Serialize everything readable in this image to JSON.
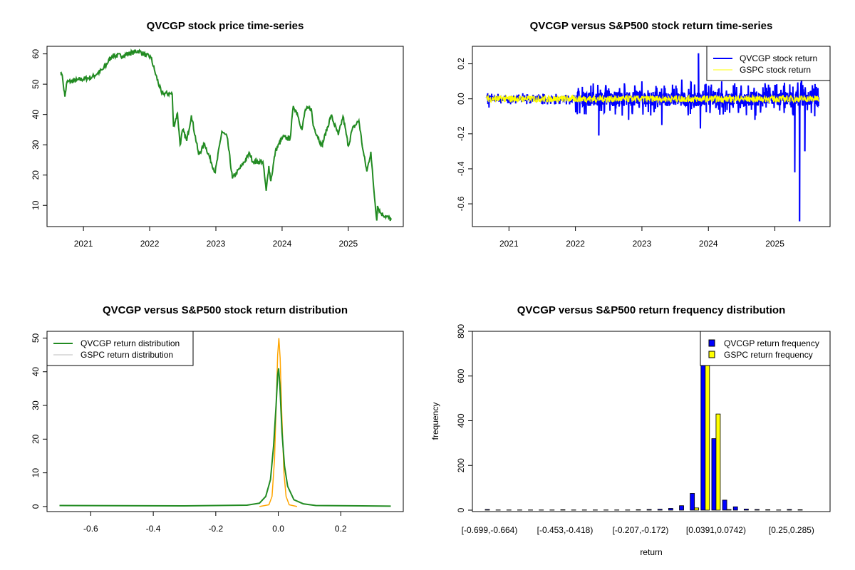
{
  "colors": {
    "price": "#228B22",
    "qvcgp_return": "#0000FF",
    "gspc_return": "#FFFF00",
    "gspc_density": "#FFA500",
    "gspc_legend": "#BEBEBE",
    "qvcgp_density": "#228B22"
  },
  "chart_data": [
    {
      "type": "line",
      "title": "QVCGP stock price time-series",
      "xlabel": "",
      "ylabel": "",
      "xlim": [
        2020.45,
        2025.83
      ],
      "ylim": [
        3,
        62.5
      ],
      "x_ticks": [
        "2021",
        "2022",
        "2023",
        "2024",
        "2025"
      ],
      "y_ticks": [
        "10",
        "20",
        "30",
        "40",
        "50",
        "60"
      ],
      "series": [
        {
          "name": "QVCGP price",
          "points": [
            [
              2020.66,
              54
            ],
            [
              2020.67,
              53.5
            ],
            [
              2020.69,
              51
            ],
            [
              2020.72,
              45.9
            ],
            [
              2020.75,
              50.7
            ],
            [
              2020.9,
              51.3
            ],
            [
              2021.13,
              52.3
            ],
            [
              2021.3,
              55
            ],
            [
              2021.43,
              59.3
            ],
            [
              2021.6,
              59.5
            ],
            [
              2021.83,
              61
            ],
            [
              2021.95,
              59.5
            ],
            [
              2022.02,
              58.8
            ],
            [
              2022.08,
              54
            ],
            [
              2022.18,
              47
            ],
            [
              2022.34,
              46.8
            ],
            [
              2022.36,
              36
            ],
            [
              2022.42,
              40.4
            ],
            [
              2022.46,
              30
            ],
            [
              2022.5,
              35
            ],
            [
              2022.56,
              31.3
            ],
            [
              2022.63,
              39.7
            ],
            [
              2022.74,
              26.7
            ],
            [
              2022.83,
              30.3
            ],
            [
              2022.99,
              20.8
            ],
            [
              2023.09,
              34.4
            ],
            [
              2023.17,
              32.5
            ],
            [
              2023.25,
              18.9
            ],
            [
              2023.39,
              23
            ],
            [
              2023.51,
              27.2
            ],
            [
              2023.56,
              24.4
            ],
            [
              2023.71,
              24.4
            ],
            [
              2023.76,
              14.8
            ],
            [
              2023.8,
              23
            ],
            [
              2023.83,
              18
            ],
            [
              2023.9,
              28
            ],
            [
              2024.01,
              32.5
            ],
            [
              2024.12,
              32
            ],
            [
              2024.17,
              42.8
            ],
            [
              2024.23,
              40.4
            ],
            [
              2024.3,
              34.9
            ],
            [
              2024.35,
              41.6
            ],
            [
              2024.44,
              42
            ],
            [
              2024.47,
              36.3
            ],
            [
              2024.6,
              29.6
            ],
            [
              2024.74,
              39.7
            ],
            [
              2024.85,
              33.2
            ],
            [
              2024.92,
              39.4
            ],
            [
              2025.0,
              29.6
            ],
            [
              2025.06,
              35.1
            ],
            [
              2025.16,
              38
            ],
            [
              2025.22,
              28.4
            ],
            [
              2025.28,
              21.2
            ],
            [
              2025.34,
              27.7
            ],
            [
              2025.38,
              16.5
            ],
            [
              2025.43,
              5
            ],
            [
              2025.44,
              9.8
            ],
            [
              2025.49,
              7.4
            ],
            [
              2025.65,
              5.3
            ]
          ]
        }
      ]
    },
    {
      "type": "line",
      "title": "QVCGP versus S&P500 stock return time-series",
      "xlim": [
        2020.45,
        2025.83
      ],
      "ylim": [
        -0.73,
        0.3
      ],
      "x_ticks": [
        "2021",
        "2022",
        "2023",
        "2024",
        "2025"
      ],
      "y_ticks": [
        "-0.6",
        "-0.4",
        "-0.2",
        "0.0",
        "0.2"
      ],
      "legend": {
        "placement": "top-right",
        "entries": [
          "QVCGP stock return",
          "GSPC stock return"
        ]
      },
      "series": [
        {
          "name": "QVCGP stock return",
          "spikes": [
            [
              2020.7,
              -0.05
            ],
            [
              2022.35,
              -0.21
            ],
            [
              2022.5,
              0.06
            ],
            [
              2022.8,
              -0.12
            ],
            [
              2023.0,
              0.1
            ],
            [
              2023.3,
              -0.15
            ],
            [
              2023.6,
              0.11
            ],
            [
              2023.85,
              0.26
            ],
            [
              2023.88,
              -0.17
            ],
            [
              2024.2,
              0.1
            ],
            [
              2024.7,
              -0.12
            ],
            [
              2025.0,
              0.08
            ],
            [
              2025.3,
              -0.42
            ],
            [
              2025.37,
              -0.7
            ],
            [
              2025.4,
              0.18
            ],
            [
              2025.45,
              -0.3
            ],
            [
              2025.6,
              -0.1
            ]
          ],
          "noise_amplitude_before_2022": 0.02,
          "noise_amplitude_after_2022": 0.06
        },
        {
          "name": "GSPC stock return",
          "noise_amplitude": 0.02
        }
      ]
    },
    {
      "type": "line",
      "title": "QVCGP versus S&P500 stock return distribution",
      "xlim": [
        -0.74,
        0.4
      ],
      "ylim": [
        -1.5,
        52
      ],
      "x_ticks": [
        "-0.6",
        "-0.4",
        "-0.2",
        "0.0",
        "0.2"
      ],
      "y_ticks": [
        "0",
        "10",
        "20",
        "30",
        "40",
        "50"
      ],
      "legend": {
        "placement": "top-left",
        "entries": [
          "QVCGP return distribution",
          "GSPC return distribution"
        ]
      },
      "series": [
        {
          "name": "QVCGP return distribution",
          "points": [
            [
              -0.7,
              0.3
            ],
            [
              -0.3,
              0.2
            ],
            [
              -0.1,
              0.4
            ],
            [
              -0.06,
              1
            ],
            [
              -0.04,
              3
            ],
            [
              -0.025,
              8
            ],
            [
              -0.015,
              18
            ],
            [
              -0.007,
              30
            ],
            [
              -0.002,
              39
            ],
            [
              0.001,
              41
            ],
            [
              0.005,
              36
            ],
            [
              0.012,
              22
            ],
            [
              0.02,
              12
            ],
            [
              0.03,
              6
            ],
            [
              0.05,
              2
            ],
            [
              0.08,
              0.8
            ],
            [
              0.12,
              0.3
            ],
            [
              0.36,
              0.1
            ]
          ]
        },
        {
          "name": "GSPC return distribution",
          "points": [
            [
              -0.06,
              0
            ],
            [
              -0.03,
              0.5
            ],
            [
              -0.02,
              3
            ],
            [
              -0.012,
              14
            ],
            [
              -0.006,
              32
            ],
            [
              -0.002,
              45
            ],
            [
              0.002,
              50
            ],
            [
              0.006,
              44
            ],
            [
              0.011,
              28
            ],
            [
              0.018,
              10
            ],
            [
              0.025,
              3
            ],
            [
              0.035,
              0.5
            ],
            [
              0.06,
              0
            ]
          ]
        }
      ]
    },
    {
      "type": "bar",
      "title": "QVCGP versus S&P500 return frequency distribution",
      "xlabel": "return",
      "ylabel": "frequency",
      "ylim": [
        0,
        800
      ],
      "y_ticks": [
        "0",
        "200",
        "400",
        "600",
        "800"
      ],
      "x_tick_labels": [
        "[-0.699,-0.664)",
        "[-0.453,-0.418)",
        "[-0.207,-0.172)",
        "[0.0391,0.0742)",
        "[0.25,0.285)"
      ],
      "x_tick_bin_indices": [
        0,
        7,
        14,
        21,
        28
      ],
      "legend": {
        "placement": "top-right",
        "entries": [
          "QVCGP return frequency",
          "GSPC return frequency"
        ]
      },
      "series": [
        {
          "name": "QVCGP return frequency",
          "values": [
            3,
            1,
            1,
            1,
            1,
            1,
            1,
            2,
            1,
            1,
            1,
            1,
            1,
            1,
            2,
            3,
            4,
            8,
            20,
            75,
            750,
            320,
            45,
            15,
            5,
            3,
            2,
            1,
            3,
            2
          ]
        },
        {
          "name": "GSPC return frequency",
          "values": [
            0,
            0,
            0,
            0,
            0,
            0,
            0,
            0,
            0,
            0,
            0,
            0,
            0,
            0,
            0,
            0,
            0,
            0,
            0,
            10,
            790,
            430,
            3,
            0,
            0,
            0,
            0,
            0,
            0,
            0
          ]
        }
      ]
    }
  ]
}
